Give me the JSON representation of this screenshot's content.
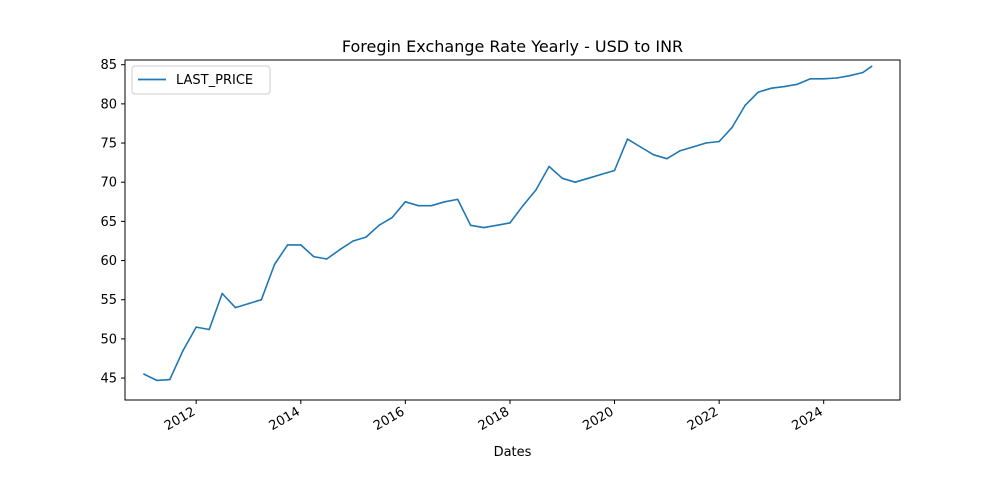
{
  "chart_data": {
    "type": "line",
    "title": "Foregin Exchange Rate Yearly - USD to INR",
    "xlabel": "Dates",
    "ylabel": "",
    "xlim": [
      "2010-08-22",
      "2025-06-17"
    ],
    "ylim": [
      42.2,
      85.6
    ],
    "x_ticks": [
      "2012",
      "2014",
      "2016",
      "2018",
      "2020",
      "2022",
      "2024"
    ],
    "y_ticks": [
      45,
      50,
      55,
      60,
      65,
      70,
      75,
      80,
      85
    ],
    "grid": false,
    "legend": "top-left",
    "line_color": "#1f77b4",
    "series": [
      {
        "name": "LAST_PRICE",
        "x": [
          "2011-01",
          "2011-04",
          "2011-07",
          "2011-10",
          "2012-01",
          "2012-04",
          "2012-07",
          "2012-10",
          "2013-01",
          "2013-04",
          "2013-07",
          "2013-10",
          "2014-01",
          "2014-04",
          "2014-07",
          "2014-10",
          "2015-01",
          "2015-04",
          "2015-07",
          "2015-10",
          "2016-01",
          "2016-04",
          "2016-07",
          "2016-10",
          "2017-01",
          "2017-04",
          "2017-07",
          "2017-10",
          "2018-01",
          "2018-04",
          "2018-07",
          "2018-10",
          "2019-01",
          "2019-04",
          "2019-07",
          "2019-10",
          "2020-01",
          "2020-04",
          "2020-07",
          "2020-10",
          "2021-01",
          "2021-04",
          "2021-07",
          "2021-10",
          "2022-01",
          "2022-04",
          "2022-07",
          "2022-10",
          "2023-01",
          "2023-04",
          "2023-07",
          "2023-10",
          "2024-01",
          "2024-04",
          "2024-07",
          "2024-10",
          "2024-12"
        ],
        "values": [
          45.5,
          44.7,
          44.8,
          48.5,
          51.5,
          51.2,
          55.8,
          54.0,
          54.5,
          55.0,
          59.5,
          62.0,
          62.0,
          60.5,
          60.2,
          61.4,
          62.5,
          63.0,
          64.5,
          65.5,
          67.5,
          67.0,
          67.0,
          67.5,
          67.8,
          64.5,
          64.2,
          64.5,
          64.8,
          67.0,
          69.0,
          72.0,
          70.5,
          70.0,
          70.5,
          71.0,
          71.5,
          75.5,
          74.5,
          73.5,
          73.0,
          74.0,
          74.5,
          75.0,
          75.2,
          77.0,
          79.8,
          81.5,
          82.0,
          82.2,
          82.5,
          83.2,
          83.2,
          83.3,
          83.6,
          84.0,
          84.8
        ]
      }
    ]
  }
}
